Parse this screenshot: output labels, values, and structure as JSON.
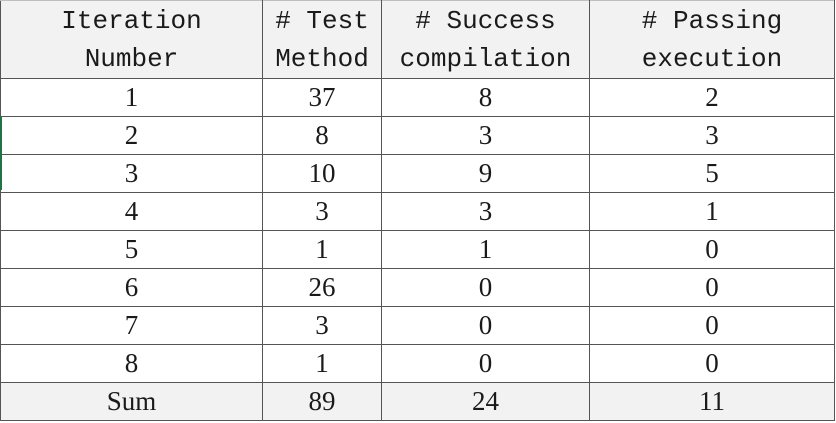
{
  "table": {
    "headers": [
      [
        "Iteration",
        "Number"
      ],
      [
        "# Test",
        "Method"
      ],
      [
        "# Success",
        "compilation"
      ],
      [
        "# Passing",
        "execution"
      ]
    ],
    "rows": [
      [
        "1",
        "37",
        "8",
        "2"
      ],
      [
        "2",
        "8",
        "3",
        "3"
      ],
      [
        "3",
        "10",
        "9",
        "5"
      ],
      [
        "4",
        "3",
        "3",
        "1"
      ],
      [
        "5",
        "1",
        "1",
        "0"
      ],
      [
        "6",
        "26",
        "0",
        "0"
      ],
      [
        "7",
        "3",
        "0",
        "0"
      ],
      [
        "8",
        "1",
        "0",
        "0"
      ]
    ],
    "sum_row": [
      "Sum",
      "89",
      "24",
      "11"
    ]
  },
  "colors": {
    "header_background": "#f2f2f2",
    "grid_line": "#555555",
    "selection_accent": "#217346"
  }
}
